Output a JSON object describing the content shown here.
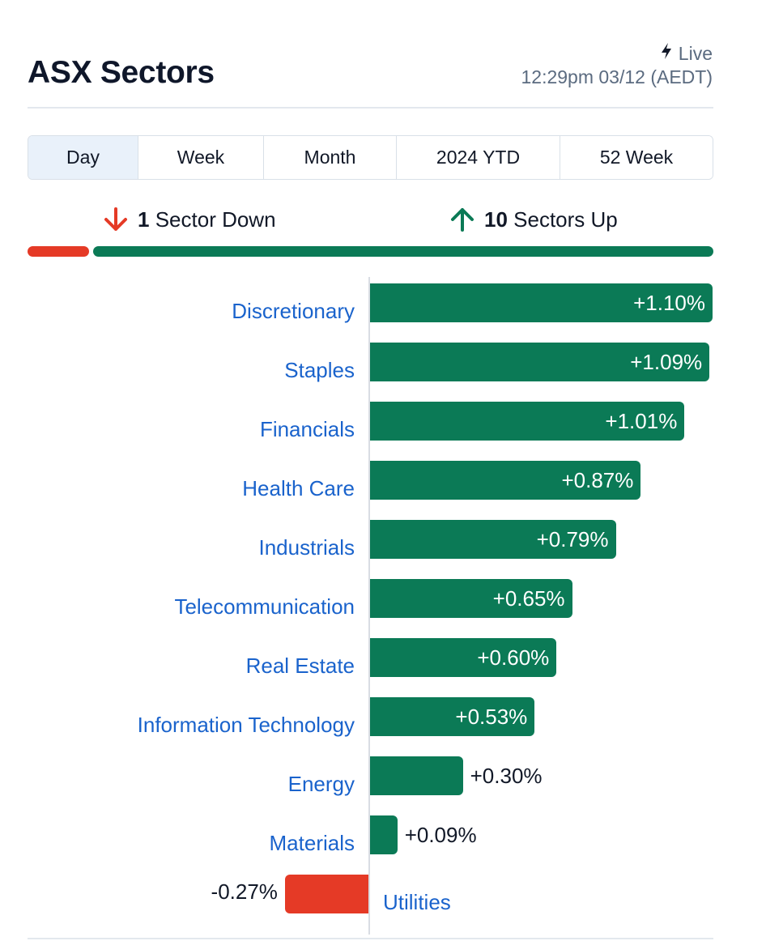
{
  "header": {
    "title": "ASX Sectors",
    "live_label": "Live",
    "timestamp": "12:29pm 03/12 (AEDT)"
  },
  "tabs": [
    {
      "label": "Day",
      "active": true
    },
    {
      "label": "Week",
      "active": false
    },
    {
      "label": "Month",
      "active": false
    },
    {
      "label": "2024 YTD",
      "active": false
    },
    {
      "label": "52 Week",
      "active": false
    }
  ],
  "summary": {
    "down_count": "1",
    "down_label": "Sector Down",
    "up_count": "10",
    "up_label": "Sectors Up"
  },
  "colors": {
    "positive": "#0b7a56",
    "negative": "#e53a26",
    "category_link": "#1a63cc",
    "active_tab": "#e9f1fa"
  },
  "icons": {
    "live": "lightning-icon",
    "down": "arrow-down-icon",
    "up": "arrow-up-icon"
  },
  "chart_data": {
    "type": "bar",
    "orientation": "horizontal",
    "categories": [
      "Discretionary",
      "Staples",
      "Financials",
      "Health Care",
      "Industrials",
      "Telecommunication",
      "Real Estate",
      "Information Technology",
      "Energy",
      "Materials",
      "Utilities"
    ],
    "values": [
      1.1,
      1.09,
      1.01,
      0.87,
      0.79,
      0.65,
      0.6,
      0.53,
      0.3,
      0.09,
      -0.27
    ],
    "value_labels": [
      "+1.10%",
      "+1.09%",
      "+1.01%",
      "+0.87%",
      "+0.79%",
      "+0.65%",
      "+0.60%",
      "+0.53%",
      "+0.30%",
      "+0.09%",
      "-0.27%"
    ],
    "unit": "%",
    "grid": false,
    "legend": false
  }
}
